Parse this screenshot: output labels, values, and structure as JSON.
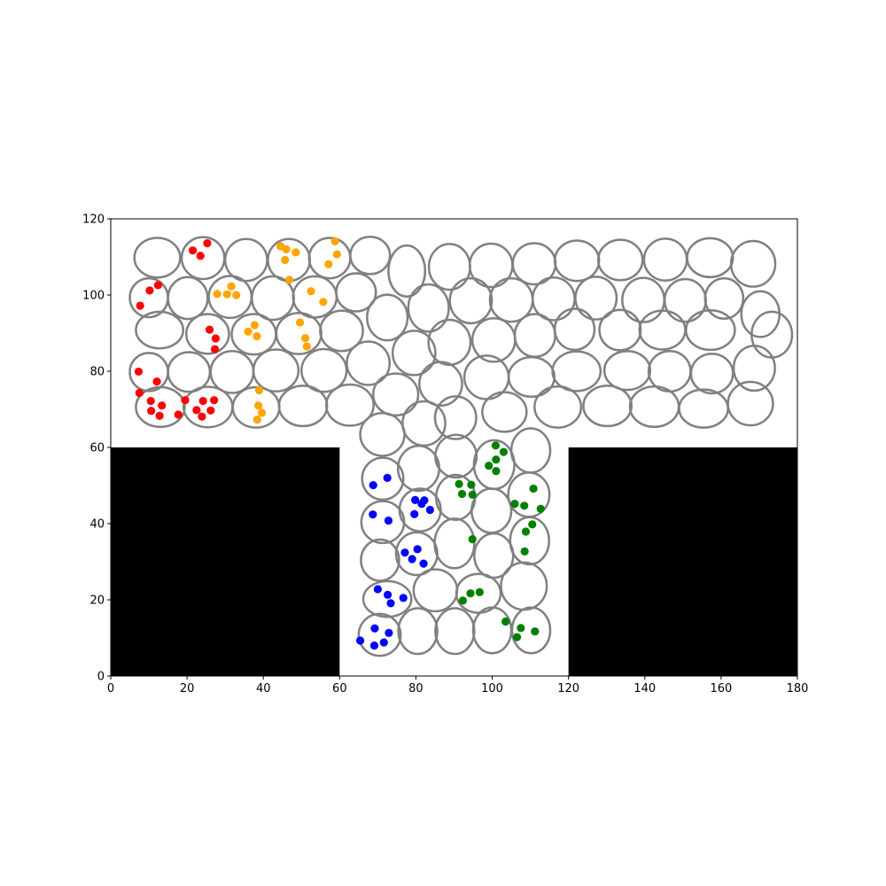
{
  "chart_data": {
    "type": "scatter",
    "title": "",
    "xlabel": "",
    "ylabel": "",
    "xlim": [
      0,
      180
    ],
    "ylim": [
      0,
      120
    ],
    "x_ticks": [
      "0",
      "20",
      "40",
      "60",
      "80",
      "100",
      "120",
      "140",
      "160",
      "180"
    ],
    "y_ticks": [
      "0",
      "20",
      "40",
      "60",
      "80",
      "100",
      "120"
    ],
    "grid": false,
    "legend": "none",
    "colors": {
      "ellipse_edge": "#808080",
      "obstacle": "#000000",
      "red": "#ff0000",
      "orange": "#ffa500",
      "blue": "#0000ff",
      "green": "#008000"
    },
    "obstacles": [
      {
        "x0": 0,
        "x1": 60,
        "y0": 0,
        "y1": 60
      },
      {
        "x0": 120,
        "x1": 180,
        "y0": 0,
        "y1": 60
      }
    ],
    "ellipses": [
      [
        12.2,
        109.8,
        6,
        5.2,
        0
      ],
      [
        24.2,
        109.7,
        5.6,
        5.5,
        0
      ],
      [
        35.5,
        109.2,
        5.5,
        5.5,
        0
      ],
      [
        46.7,
        109.2,
        5.5,
        5.5,
        0
      ],
      [
        57.4,
        109.7,
        5.4,
        5.3,
        0
      ],
      [
        68,
        110.4,
        5.2,
        4.9,
        0
      ],
      [
        77.6,
        106.3,
        4.8,
        6.7,
        0
      ],
      [
        88.8,
        107.4,
        5.4,
        6,
        0
      ],
      [
        99.7,
        107.8,
        5.6,
        5.7,
        0
      ],
      [
        111,
        108.2,
        5.6,
        5.4,
        0
      ],
      [
        122.2,
        109,
        5.8,
        5.3,
        0
      ],
      [
        133.6,
        109.2,
        5.8,
        5.3,
        0
      ],
      [
        145.4,
        109.3,
        5.6,
        5.5,
        0
      ],
      [
        157.1,
        109.8,
        6,
        5.1,
        0
      ],
      [
        168.4,
        108.2,
        5.8,
        6,
        0
      ],
      [
        10,
        99.3,
        5,
        5.1,
        0
      ],
      [
        20.2,
        99.2,
        5.2,
        5.5,
        0
      ],
      [
        31.3,
        99.5,
        5.6,
        5.5,
        0
      ],
      [
        42.5,
        99.2,
        5.5,
        5.7,
        0
      ],
      [
        53.5,
        99.5,
        5.7,
        5.4,
        0
      ],
      [
        64.3,
        100.7,
        5.2,
        5,
        0
      ],
      [
        72.5,
        94.1,
        5.3,
        6,
        0
      ],
      [
        83.3,
        96.6,
        5.3,
        6.2,
        0
      ],
      [
        94.4,
        98.5,
        5.5,
        5.9,
        0
      ],
      [
        105,
        98.7,
        5.6,
        5.7,
        0
      ],
      [
        116.1,
        99,
        5.5,
        5.6,
        0
      ],
      [
        127.2,
        99.2,
        5.4,
        5.6,
        0
      ],
      [
        139.6,
        98.7,
        5.5,
        5.8,
        0
      ],
      [
        150.6,
        98.6,
        5.4,
        5.6,
        0
      ],
      [
        160.8,
        99.1,
        5,
        5.3,
        0
      ],
      [
        170.3,
        95,
        5,
        6,
        0
      ],
      [
        12.8,
        90.8,
        6.2,
        4.8,
        0
      ],
      [
        25.4,
        89.8,
        5.6,
        5.2,
        0
      ],
      [
        37.5,
        89.7,
        5.8,
        5.3,
        0
      ],
      [
        49.3,
        89.9,
        5.9,
        5.4,
        0
      ],
      [
        60.5,
        90.6,
        5.6,
        5.3,
        0
      ],
      [
        88.8,
        87.6,
        5.5,
        5.9,
        0
      ],
      [
        100.4,
        88.2,
        5.6,
        5.7,
        0
      ],
      [
        111.2,
        89.4,
        5.3,
        5.6,
        0
      ],
      [
        121.6,
        91,
        5.2,
        5.4,
        0
      ],
      [
        133.5,
        90.8,
        5.4,
        5.3,
        0
      ],
      [
        144.6,
        90.8,
        6,
        5.1,
        0
      ],
      [
        157.2,
        90.8,
        6.4,
        5.2,
        0
      ],
      [
        10,
        79.8,
        5,
        5,
        0
      ],
      [
        20.5,
        79.8,
        5.5,
        5.2,
        0
      ],
      [
        31.8,
        79.8,
        5.6,
        5.5,
        0
      ],
      [
        43.3,
        80.2,
        5.9,
        5.5,
        0
      ],
      [
        55.9,
        80.2,
        5.9,
        5.6,
        0
      ],
      [
        67.5,
        82.1,
        5.6,
        5.7,
        0
      ],
      [
        79.5,
        84.8,
        5.6,
        5.8,
        0
      ],
      [
        173.3,
        89.6,
        5.3,
        6,
        0
      ],
      [
        86.5,
        76.7,
        5.6,
        5.7,
        0
      ],
      [
        98.5,
        78.4,
        5.8,
        5.7,
        0
      ],
      [
        110.3,
        78.5,
        6,
        5.2,
        0
      ],
      [
        122.1,
        80,
        6.3,
        5.2,
        0
      ],
      [
        135.4,
        80.2,
        6,
        5.1,
        0
      ],
      [
        146.5,
        80,
        5.5,
        5.3,
        0
      ],
      [
        157.6,
        79.4,
        5.5,
        5.2,
        0
      ],
      [
        168.7,
        80.8,
        5.4,
        5.9,
        0
      ],
      [
        13,
        70.6,
        6.4,
        5.2,
        0
      ],
      [
        25.5,
        70.6,
        6.4,
        5.3,
        0
      ],
      [
        38.1,
        70.5,
        6.1,
        5.3,
        0
      ],
      [
        50.4,
        70.9,
        6.3,
        5.3,
        0
      ],
      [
        62.7,
        71.1,
        6.2,
        5.4,
        0
      ],
      [
        74.7,
        73.9,
        5.9,
        5.5,
        0
      ],
      [
        90.4,
        67.8,
        5.4,
        5.6,
        0
      ],
      [
        103.2,
        69.3,
        5.8,
        5.2,
        0
      ],
      [
        117.2,
        70.6,
        6.1,
        5.4,
        0
      ],
      [
        130.2,
        70.9,
        6.3,
        5.3,
        0
      ],
      [
        142.5,
        70.7,
        6.4,
        5.3,
        0
      ],
      [
        155.4,
        70.2,
        6.4,
        5,
        0
      ],
      [
        167.7,
        71.5,
        5.9,
        5.7,
        0
      ],
      [
        71.2,
        63.4,
        5.8,
        5.6,
        0
      ],
      [
        82.1,
        66.3,
        5.6,
        5.8,
        0
      ],
      [
        71.3,
        51.8,
        5.4,
        5.5,
        0
      ],
      [
        80.7,
        54.5,
        5.4,
        5.9,
        0
      ],
      [
        90.5,
        57.7,
        5.4,
        5.6,
        0
      ],
      [
        100.5,
        55.5,
        5.3,
        6.4,
        0
      ],
      [
        110.1,
        59.2,
        5.1,
        5.8,
        0
      ],
      [
        71.3,
        40.4,
        5.6,
        5.5,
        0
      ],
      [
        81.1,
        43.6,
        5.4,
        5.6,
        0
      ],
      [
        90.4,
        46.9,
        5.1,
        5.9,
        0
      ],
      [
        99.8,
        43.4,
        5.2,
        5.8,
        0
      ],
      [
        109.6,
        47.6,
        5.4,
        5.8,
        0
      ],
      [
        70.6,
        30.4,
        5,
        5.4,
        0
      ],
      [
        80.2,
        32.1,
        5.4,
        5.6,
        0
      ],
      [
        90.1,
        34.8,
        5.2,
        6.5,
        0
      ],
      [
        100.4,
        31.6,
        5.1,
        5.8,
        0
      ],
      [
        109.8,
        35.5,
        5.1,
        6.2,
        0
      ],
      [
        72.5,
        20.2,
        6.3,
        4.7,
        0
      ],
      [
        85.1,
        22.5,
        5.7,
        5.5,
        0
      ],
      [
        96.4,
        21.7,
        5.8,
        5.1,
        0
      ],
      [
        108.3,
        23.6,
        6,
        6.2,
        0
      ],
      [
        70.5,
        10.8,
        5.5,
        5.5,
        0
      ],
      [
        80.5,
        11.8,
        5.1,
        6,
        0
      ],
      [
        90.2,
        11.8,
        5.1,
        6,
        0
      ],
      [
        100,
        12,
        5,
        6,
        0
      ],
      [
        110.2,
        12,
        5,
        6,
        0
      ]
    ],
    "series": [
      {
        "color": "red",
        "x": [
          21.5,
          25.3,
          23.5,
          10.2,
          12.4,
          7.7,
          7.3,
          12.1,
          7.5,
          10.5,
          13.4,
          10.6,
          12.8,
          17.7,
          19.5,
          22.5,
          24.2,
          26.2,
          27.1,
          23.9,
          25.9,
          27.5,
          27.3
        ],
        "y": [
          111.7,
          113.6,
          110.3,
          101.2,
          102.6,
          97.2,
          79.9,
          77.3,
          74.3,
          72.2,
          71,
          69.6,
          68.3,
          68.6,
          72.4,
          69.8,
          72.2,
          69.7,
          72.4,
          68.1,
          90.9,
          88.6,
          85.8
        ]
      },
      {
        "color": "orange",
        "x": [
          44.5,
          46,
          48.5,
          45.7,
          58.8,
          59.3,
          57.1,
          46.8,
          52.5,
          55.7,
          27.9,
          31.6,
          30.5,
          32.9,
          36,
          37.7,
          38.3,
          49.6,
          51.4,
          51,
          38.9,
          38.7,
          39.6,
          38.4
        ],
        "y": [
          112.8,
          112,
          111.2,
          109.2,
          114.1,
          110.7,
          108.1,
          104,
          101,
          98.2,
          100.3,
          102.3,
          100.2,
          100,
          90.4,
          92.1,
          89.2,
          92.8,
          86.5,
          88.7,
          75,
          71,
          69.1,
          67.3
        ]
      },
      {
        "color": "blue",
        "x": [
          72.5,
          68.8,
          79.8,
          82.2,
          83.7,
          81.5,
          79.6,
          68.7,
          72.8,
          77.1,
          80.4,
          79,
          82,
          70,
          72.6,
          76.7,
          73.4,
          69.2,
          72.9,
          65.4,
          69.1,
          71.6
        ],
        "y": [
          52,
          50.1,
          46.2,
          46.1,
          43.6,
          45.2,
          42.5,
          42.4,
          40.8,
          32.4,
          33.3,
          30.7,
          29.5,
          22.8,
          21.3,
          20.5,
          19.1,
          12.5,
          11.3,
          9.3,
          8,
          8.8
        ]
      },
      {
        "color": "green",
        "x": [
          100.9,
          103,
          101,
          99.1,
          101,
          91.3,
          94.5,
          92.1,
          94.8,
          94.8,
          110.8,
          112.7,
          105.9,
          108.4,
          110.5,
          108.8,
          108.5,
          92.3,
          94.3,
          96.7,
          103.5,
          107.5,
          106.5,
          111.2
        ],
        "y": [
          60.5,
          58.8,
          56.8,
          55.2,
          53.8,
          50.4,
          50.2,
          47.8,
          47.6,
          35.9,
          49.2,
          43.9,
          45.2,
          44.7,
          39.8,
          37.9,
          32.7,
          19.8,
          21.7,
          22,
          14.3,
          12.6,
          10.2,
          11.7
        ]
      }
    ]
  }
}
